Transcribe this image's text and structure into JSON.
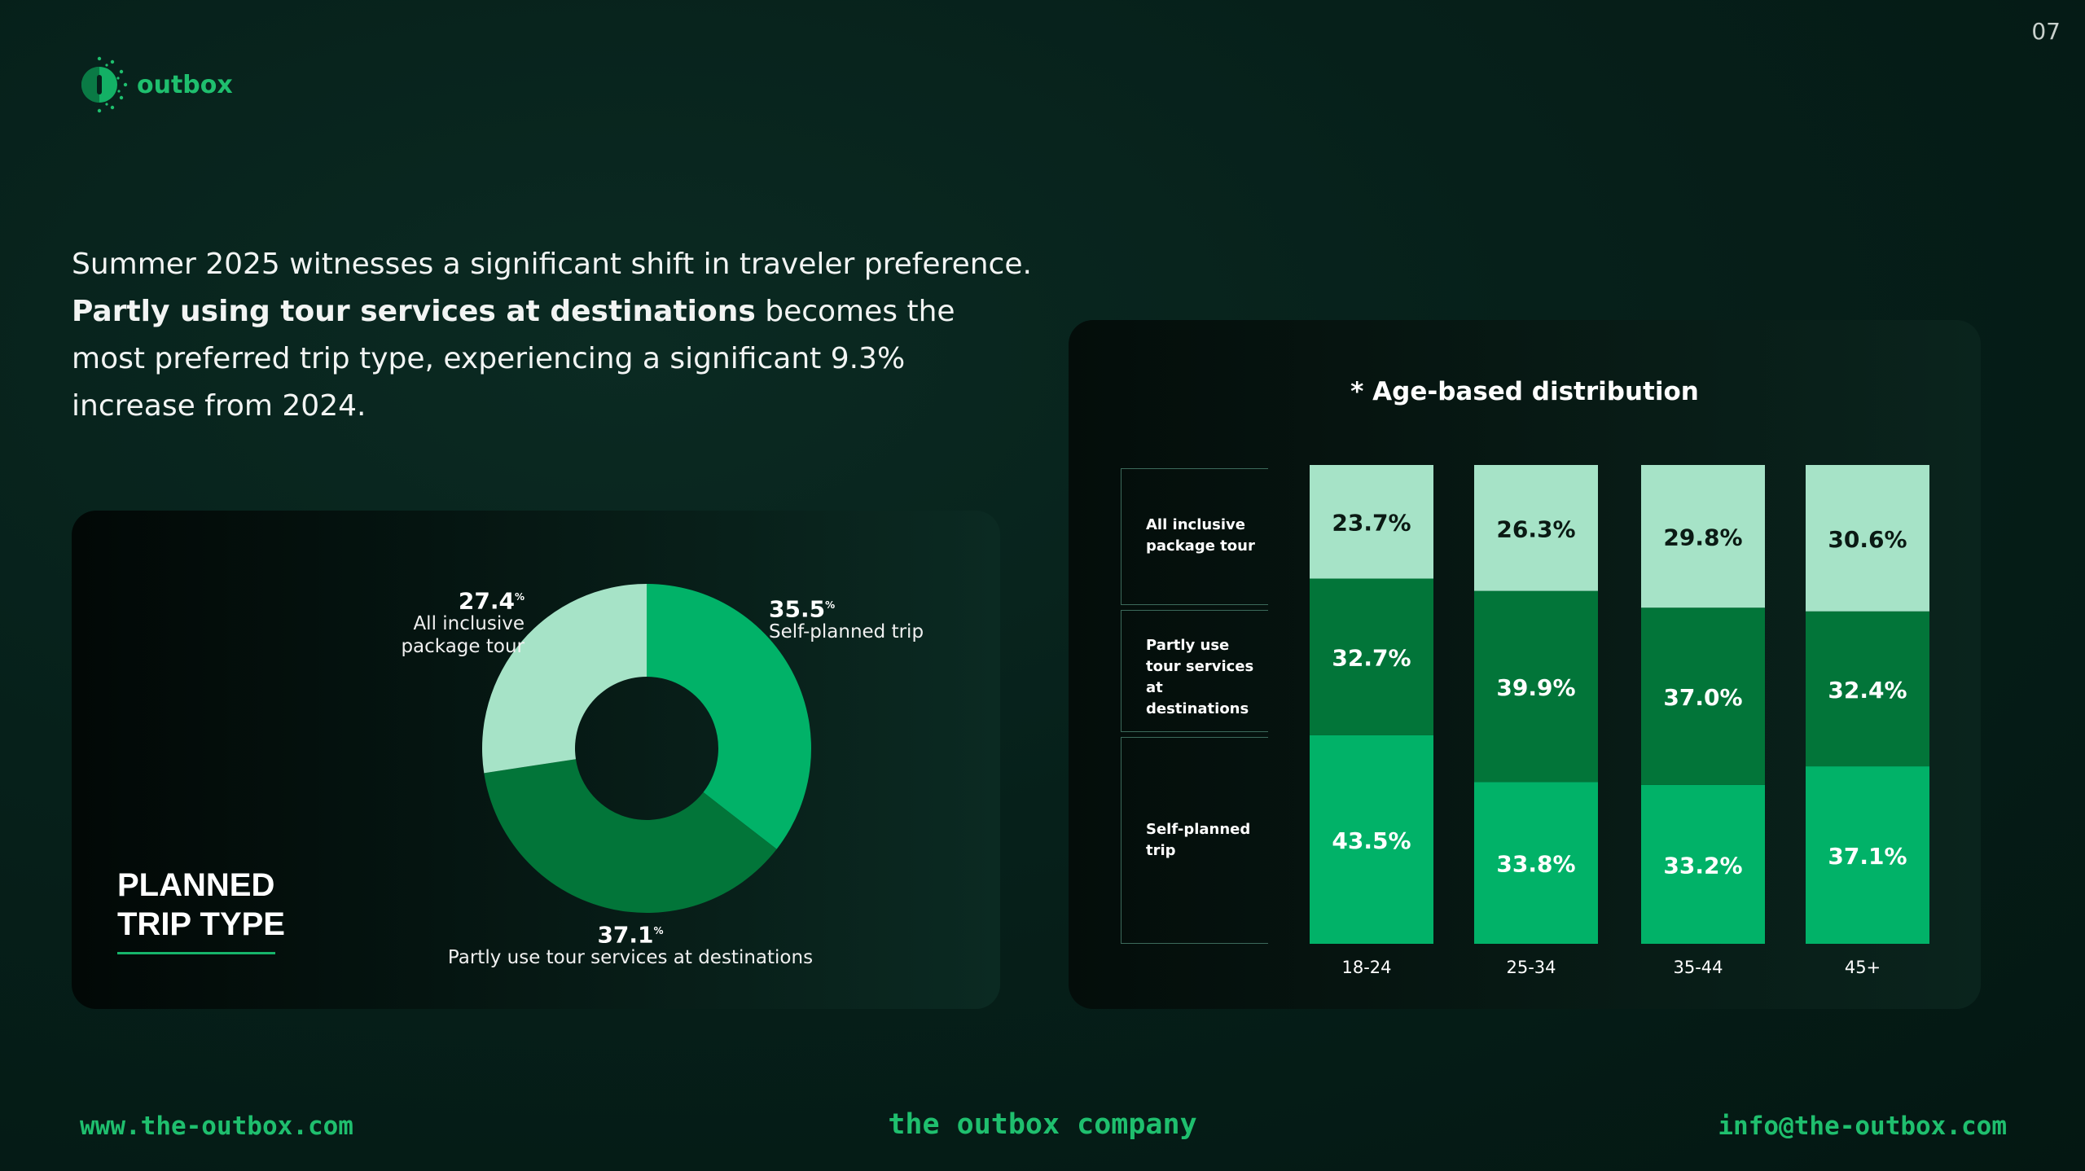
{
  "brand": {
    "name": "outbox",
    "page_number": "07"
  },
  "headline": {
    "line1": "Summer 2025 witnesses a significant shift in traveler preference.",
    "bold": "Partly using tour services at destinations",
    "rest": " becomes the most preferred trip type, experiencing a significant 9.3% increase from 2024."
  },
  "donut": {
    "section_title_line1": "PLANNED",
    "section_title_line2": "TRIP TYPE"
  },
  "bars": {
    "title": "* Age-based distribution",
    "row_labels": [
      "All inclusive package tour",
      "Partly use tour services at destinations",
      "Self-planned trip"
    ]
  },
  "footer": {
    "website": "www.the-outbox.com",
    "company": "the outbox company",
    "email": "info@the-outbox.com"
  },
  "colors": {
    "light": "#a6e3c7",
    "dark": "#027539",
    "bright": "#01b268",
    "accent": "#1fbf6e"
  },
  "chart_data": [
    {
      "type": "pie",
      "title": "PLANNED TRIP TYPE",
      "unit": "%",
      "slices": [
        {
          "label": "Self-planned trip",
          "value": 35.5,
          "color": "#01b268"
        },
        {
          "label": "Partly use tour services at destinations",
          "value": 37.1,
          "color": "#027539"
        },
        {
          "label": "All inclusive package tour",
          "value": 27.4,
          "color": "#a6e3c7"
        }
      ]
    },
    {
      "type": "bar",
      "stacked": true,
      "title": "* Age-based distribution",
      "categories": [
        "18-24",
        "25-34",
        "35-44",
        "45+"
      ],
      "series": [
        {
          "name": "Self-planned trip",
          "values": [
            43.5,
            33.8,
            33.2,
            37.1
          ],
          "color": "#01b268",
          "text_color": "#ffffff"
        },
        {
          "name": "Partly use tour services at destinations",
          "values": [
            32.7,
            39.9,
            37.0,
            32.4
          ],
          "color": "#027539",
          "text_color": "#ffffff"
        },
        {
          "name": "All inclusive package tour",
          "values": [
            23.7,
            26.3,
            29.8,
            30.6
          ],
          "color": "#a6e3c7",
          "text_color": "#0b1a14"
        }
      ],
      "value_suffix": "%",
      "ylim": [
        0,
        100
      ]
    }
  ]
}
